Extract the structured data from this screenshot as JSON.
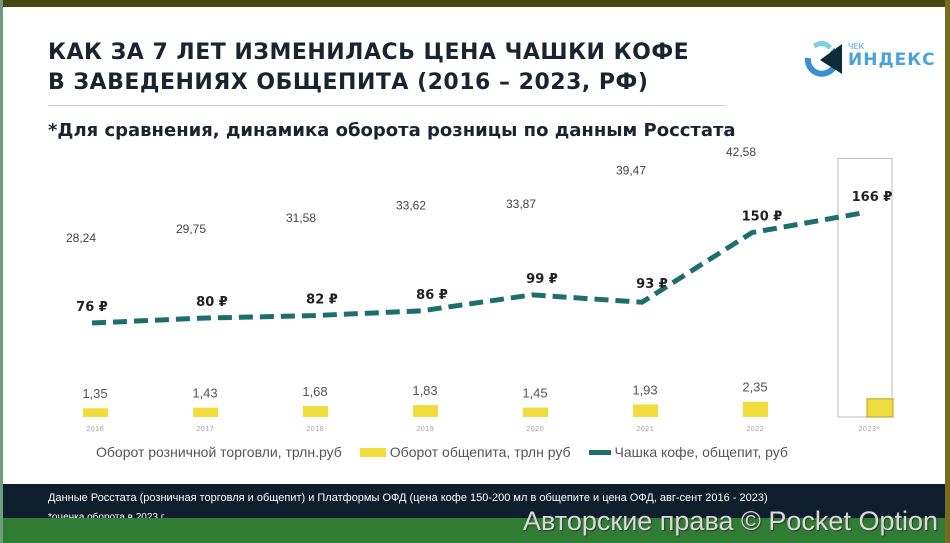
{
  "title_line1": "КАК ЗА 7 ЛЕТ ИЗМЕНИЛАСЬ ЦЕНА ЧАШКИ КОФЕ",
  "title_line2": "В ЗАВЕДЕНИЯХ ОБЩЕПИТА (2016 – 2023, РФ)",
  "subtitle": "*Для сравнения, динамика оборота розницы по данным Росстата",
  "logo": {
    "small": "ЧЕК",
    "big": "ИНДЕКС"
  },
  "chart_data": {
    "type": "bar+line",
    "categories": [
      "2016",
      "2017",
      "2018",
      "2019",
      "2020",
      "2021",
      "2022",
      "2023*"
    ],
    "series": [
      {
        "name": "Оборот розничной торговли, трлн.руб",
        "type": "bar",
        "values": [
          28.24,
          29.75,
          31.58,
          33.62,
          33.87,
          39.47,
          42.58,
          43.5
        ],
        "labels": [
          "28,24",
          "29,75",
          "31,58",
          "33,62",
          "33,87",
          "39,47",
          "42,58",
          ""
        ],
        "color": "#ffffff"
      },
      {
        "name": "Оборот общепита, трлн руб",
        "type": "bar",
        "values": [
          1.35,
          1.43,
          1.68,
          1.83,
          1.45,
          1.93,
          2.35,
          2.8
        ],
        "labels": [
          "1,35",
          "1,43",
          "1,68",
          "1,83",
          "1,45",
          "1,93",
          "2,35",
          ""
        ],
        "color": "#f0dc3c"
      },
      {
        "name": "Чашка кофе, общепит, руб",
        "type": "line",
        "style": "dashed",
        "values": [
          76,
          80,
          82,
          86,
          99,
          93,
          150,
          166
        ],
        "labels": [
          "76 ₽",
          "80 ₽",
          "82 ₽",
          "86 ₽",
          "99 ₽",
          "93 ₽",
          "150 ₽",
          "166 ₽"
        ],
        "color": "#1f6e6e"
      }
    ],
    "legend": "bottom",
    "grid": false
  },
  "footer": {
    "source": "Данные Росстата  (розничная  торговля  и общепит)  и Платформы ОФД  (цена кофе 150-200 мл в общепите  и цена ОФД, авг-сент 2016 - 2023)",
    "note": "*оценка оборота  в 2023 г"
  },
  "watermark": "Авторские права © Pocket Option"
}
